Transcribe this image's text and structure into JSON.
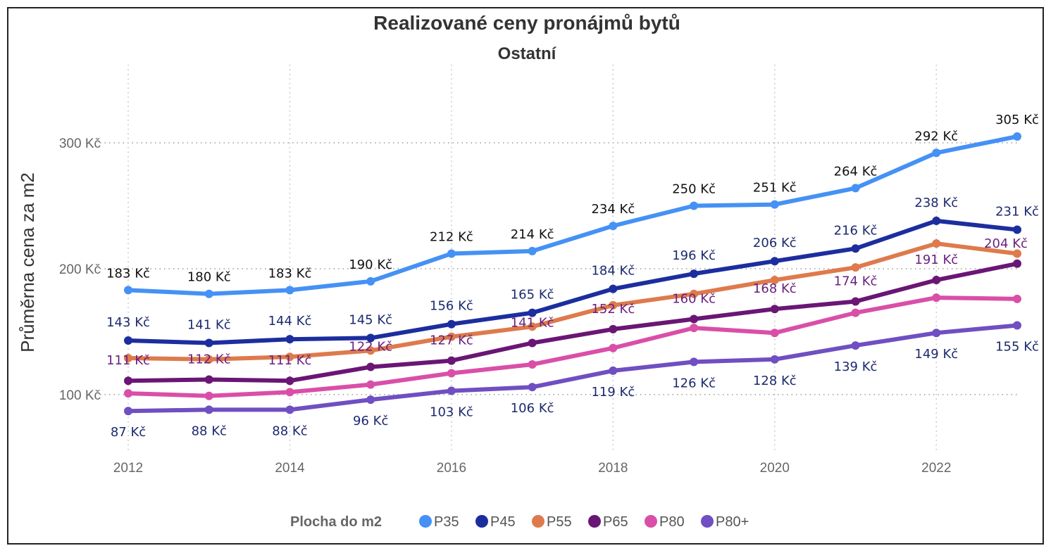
{
  "chart_data": {
    "type": "line",
    "title": "Realizované ceny pronájmů bytů",
    "subtitle": "Ostatní",
    "xlabel": "",
    "ylabel": "Průměrna cena za m2",
    "x": [
      2012,
      2013,
      2014,
      2015,
      2016,
      2017,
      2018,
      2019,
      2020,
      2021,
      2022,
      2023
    ],
    "x_ticks": [
      "2012",
      "2014",
      "2016",
      "2018",
      "2020",
      "2022"
    ],
    "y_ticks": [
      "100 Kč",
      "200 Kč",
      "300 Kč"
    ],
    "y_tick_values": [
      100,
      200,
      300
    ],
    "ylim": [
      48,
      362
    ],
    "grid": true,
    "legend_title": "Plocha do m2",
    "legend_position": "bottom-center",
    "series": [
      {
        "name": "P35",
        "color": "#4591f5",
        "values": [
          183,
          180,
          183,
          190,
          212,
          214,
          234,
          250,
          251,
          264,
          292,
          305
        ],
        "labels": [
          "183 Kč",
          "180 Kč",
          "183 Kč",
          "190 Kč",
          "212 Kč",
          "214 Kč",
          "234 Kč",
          "250 Kč",
          "251 Kč",
          "264 Kč",
          "292 Kč",
          "305 Kč"
        ],
        "label_color": "#111111"
      },
      {
        "name": "P45",
        "color": "#1c2e9e",
        "values": [
          143,
          141,
          144,
          145,
          156,
          165,
          184,
          196,
          206,
          216,
          238,
          231
        ],
        "labels": [
          "143 Kč",
          "141 Kč",
          "144 Kč",
          "145 Kč",
          "156 Kč",
          "165 Kč",
          "184 Kč",
          "196 Kč",
          "206 Kč",
          "216 Kč",
          "238 Kč",
          "231 Kč"
        ],
        "label_color": "#1c2a6e"
      },
      {
        "name": "P55",
        "color": "#de7a4c",
        "values": [
          129,
          128,
          130,
          135,
          146,
          154,
          171,
          180,
          191,
          201,
          220,
          212
        ],
        "labels": [],
        "label_color": "#6a1f7e"
      },
      {
        "name": "P65",
        "color": "#6a1675",
        "values": [
          111,
          112,
          111,
          122,
          127,
          141,
          152,
          160,
          168,
          174,
          191,
          204
        ],
        "labels": [
          "111 Kč",
          "112 Kč",
          "111 Kč",
          "122 Kč",
          "127 Kč",
          "141 Kč",
          "152 Kč",
          "160 Kč",
          "168 Kč",
          "174 Kč",
          "191 Kč",
          "204 Kč"
        ],
        "label_color": "#6a1f7e"
      },
      {
        "name": "P80",
        "color": "#d94fa8",
        "values": [
          101,
          99,
          102,
          108,
          117,
          124,
          137,
          153,
          149,
          165,
          177,
          176
        ],
        "labels": [],
        "label_color": "#6a1f7e"
      },
      {
        "name": "P80+",
        "color": "#6f4fc1",
        "values": [
          87,
          88,
          88,
          96,
          103,
          106,
          119,
          126,
          128,
          139,
          149,
          155
        ],
        "labels": [
          "87 Kč",
          "88 Kč",
          "88 Kč",
          "96 Kč",
          "103 Kč",
          "106 Kč",
          "119 Kč",
          "126 Kč",
          "128 Kč",
          "139 Kč",
          "149 Kč",
          "155 Kč"
        ],
        "label_color": "#1c2a6e"
      }
    ]
  }
}
